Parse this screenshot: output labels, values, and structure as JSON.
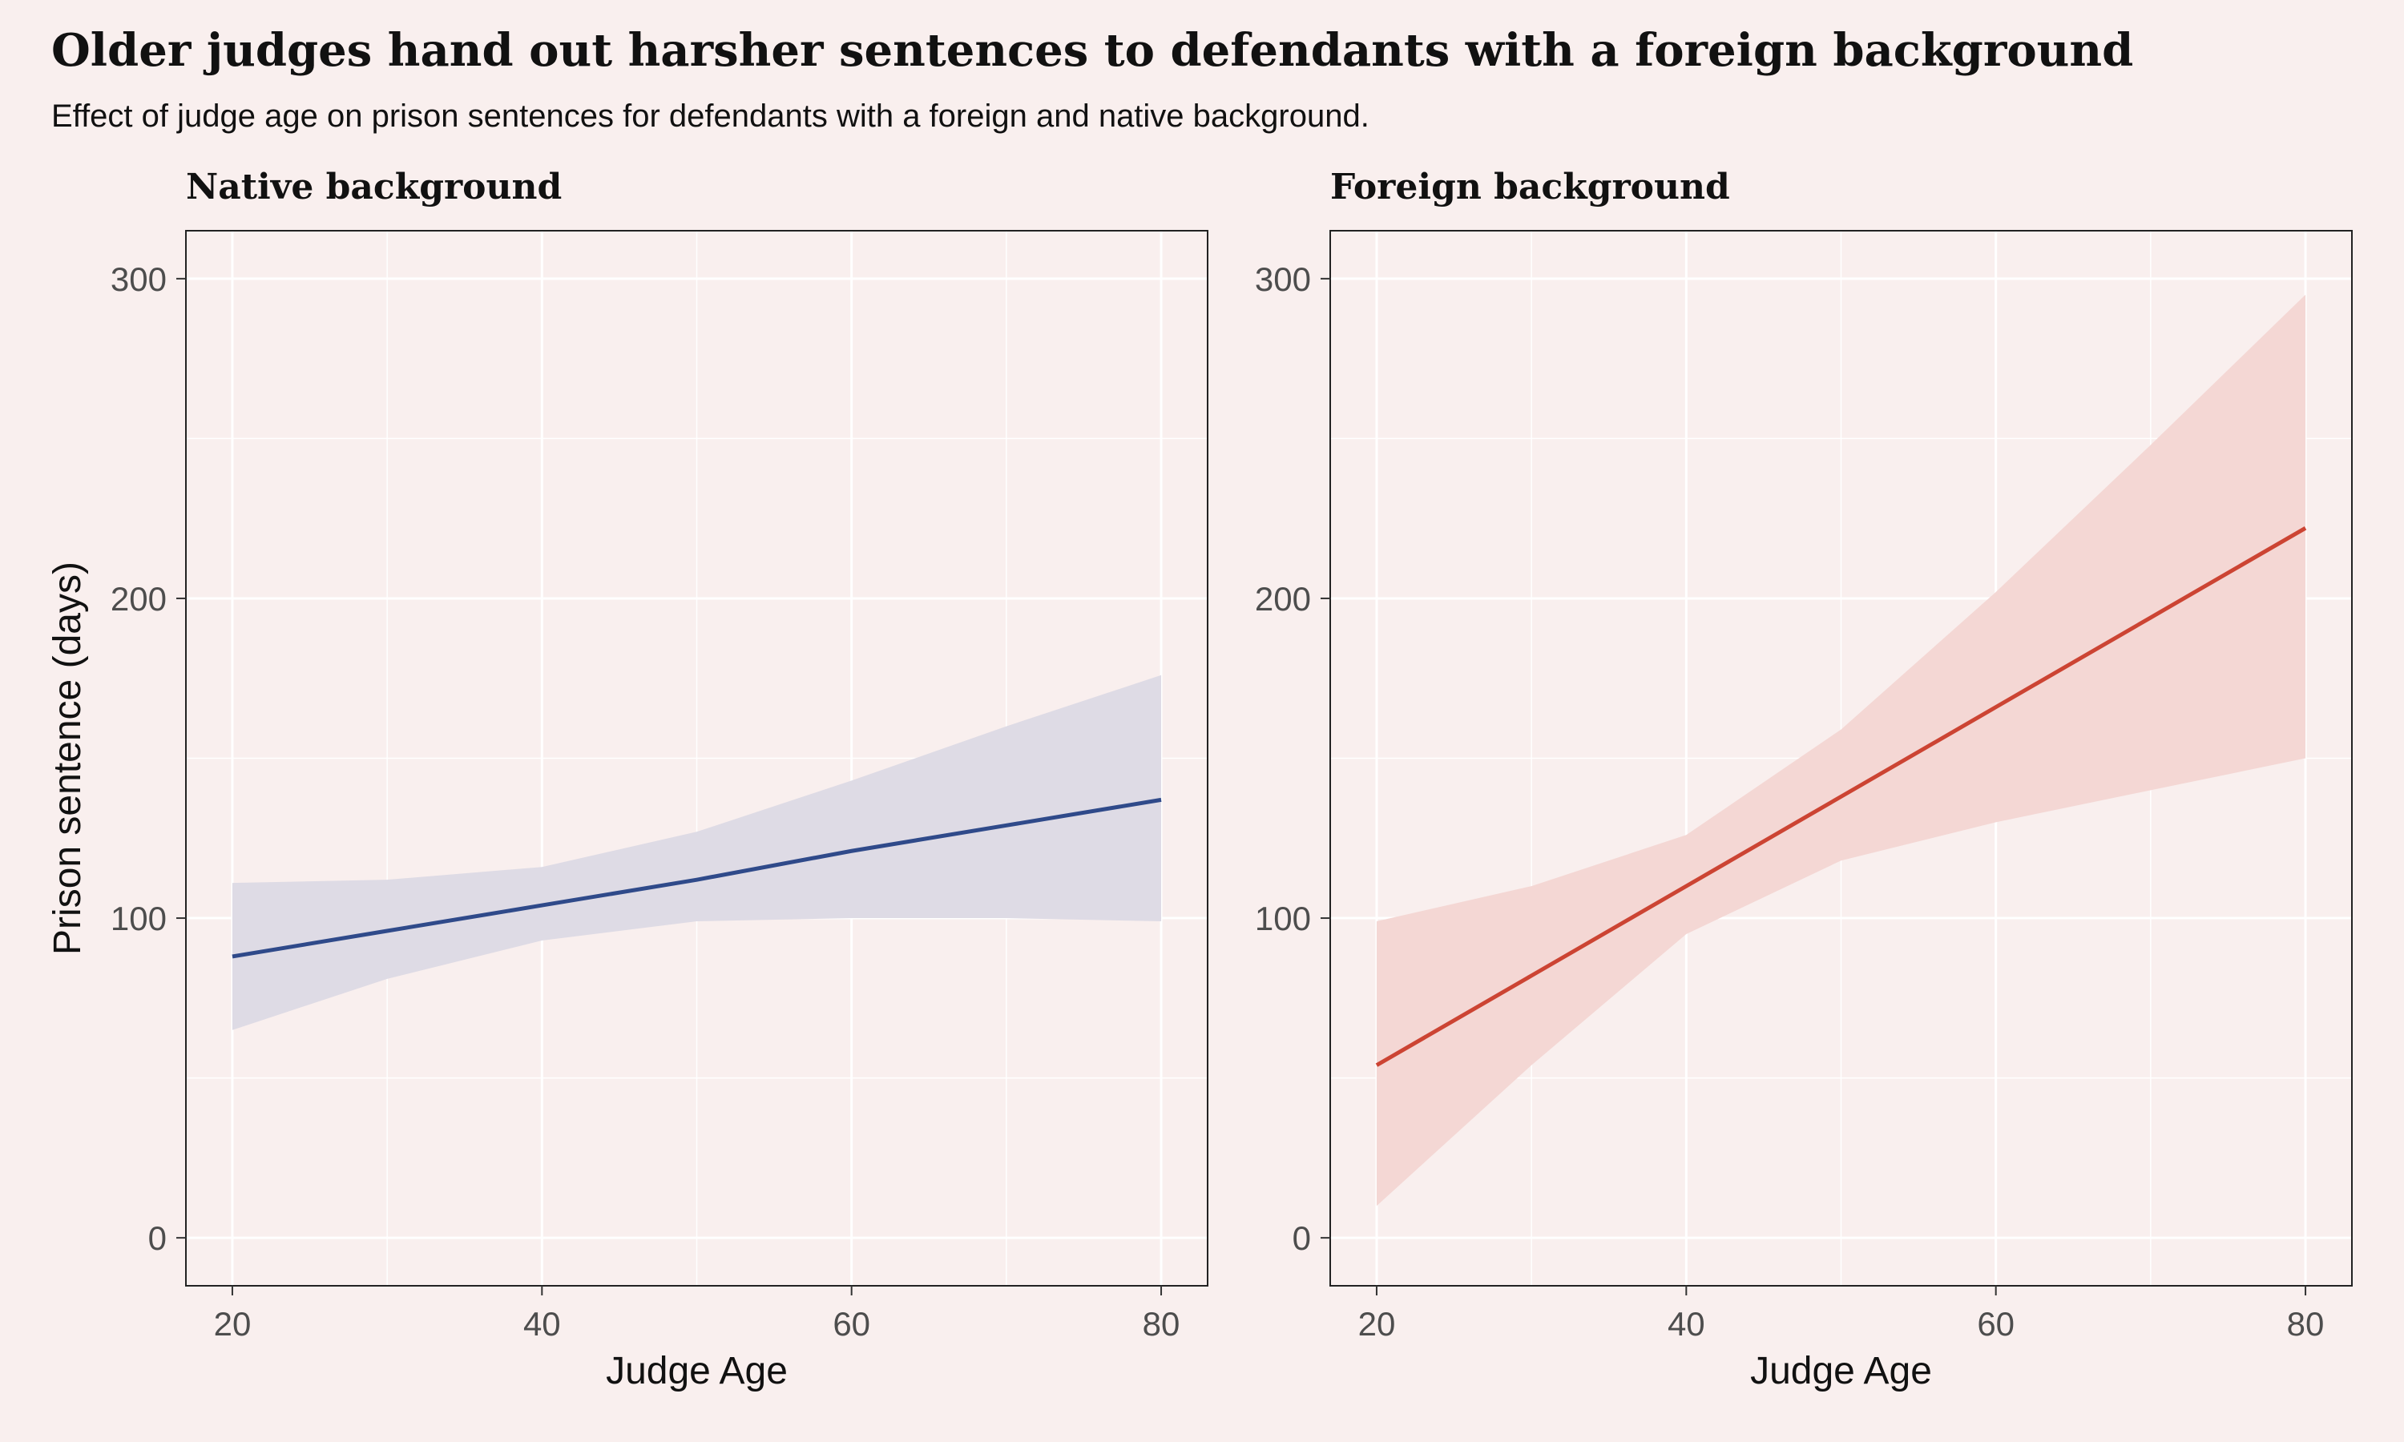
{
  "title": "Older judges hand out harsher sentences to defendants with a foreign background",
  "subtitle": "Effect of judge age on prison sentences for defendants with a foreign and native background.",
  "colors": {
    "background": "#f9efee",
    "native_line": "#2f4a8a",
    "native_band": "#dcd9e4",
    "foreign_line": "#cc4433",
    "foreign_band": "#f3d5d2",
    "grid": "#ffffff",
    "axis_text": "#4d4d4d"
  },
  "chart_data": [
    {
      "type": "line",
      "panel_title": "Native background",
      "xlabel": "Judge Age",
      "ylabel": "Prison sentence (days)",
      "xlim": [
        17,
        83
      ],
      "ylim": [
        -15,
        315
      ],
      "x_ticks": [
        20,
        40,
        60,
        80
      ],
      "y_ticks": [
        0,
        100,
        200,
        300
      ],
      "grid": true,
      "series": [
        {
          "x": [
            20,
            30,
            40,
            50,
            60,
            70,
            80
          ],
          "y": [
            88,
            96,
            104,
            112,
            121,
            129,
            137
          ],
          "lower": [
            65,
            81,
            93,
            99,
            100,
            100,
            99
          ],
          "upper": [
            111,
            112,
            116,
            127,
            143,
            160,
            176
          ]
        }
      ]
    },
    {
      "type": "line",
      "panel_title": "Foreign background",
      "xlabel": "Judge Age",
      "ylabel": "",
      "xlim": [
        17,
        83
      ],
      "ylim": [
        -15,
        315
      ],
      "x_ticks": [
        20,
        40,
        60,
        80
      ],
      "y_ticks": [
        0,
        100,
        200,
        300
      ],
      "grid": true,
      "series": [
        {
          "x": [
            20,
            30,
            40,
            50,
            60,
            70,
            80
          ],
          "y": [
            54,
            82,
            110,
            138,
            166,
            194,
            222
          ],
          "lower": [
            10,
            54,
            95,
            118,
            130,
            140,
            150
          ],
          "upper": [
            99,
            110,
            126,
            159,
            202,
            248,
            295
          ]
        }
      ]
    }
  ]
}
